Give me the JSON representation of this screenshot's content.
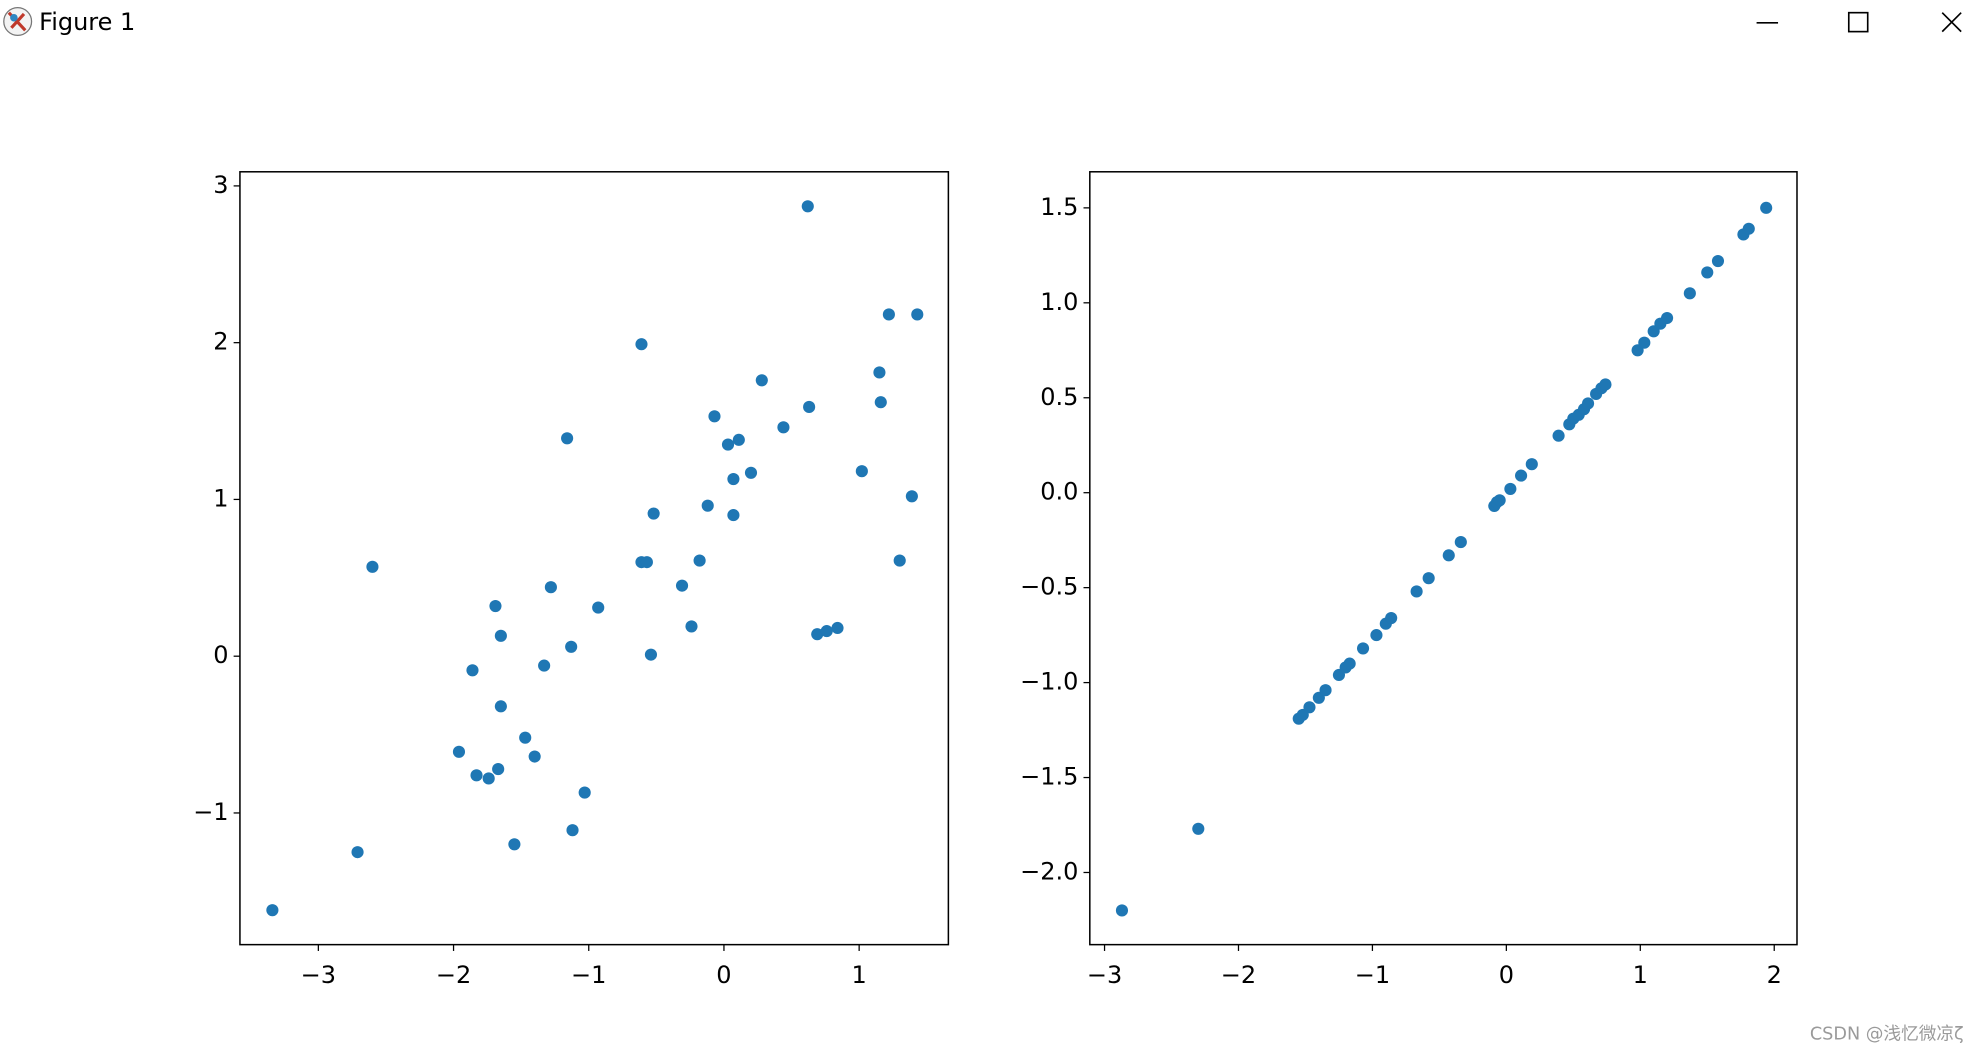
{
  "window": {
    "title": "Figure 1"
  },
  "watermark": "CSDN @浅忆微凉ζ",
  "chart_data": [
    {
      "type": "scatter",
      "color": "#1f77b4",
      "xlim": [
        -3.58,
        1.66
      ],
      "ylim": [
        -1.84,
        3.09
      ],
      "xticks": [
        {
          "value": -3,
          "label": "−3"
        },
        {
          "value": -2,
          "label": "−2"
        },
        {
          "value": -1,
          "label": "−1"
        },
        0,
        1
      ],
      "yticks": [
        {
          "value": -1,
          "label": "−1"
        },
        0,
        1,
        2,
        3
      ],
      "x": [
        -3.34,
        -2.71,
        -2.6,
        -1.96,
        -1.86,
        -1.83,
        -1.74,
        -1.69,
        -1.67,
        -1.65,
        -1.65,
        -1.55,
        -1.47,
        -1.4,
        -1.33,
        -1.28,
        -1.16,
        -1.13,
        -1.12,
        -1.03,
        -0.93,
        -0.61,
        -0.61,
        -0.57,
        -0.54,
        -0.52,
        -0.31,
        -0.24,
        -0.18,
        -0.12,
        -0.07,
        0.03,
        0.07,
        0.07,
        0.11,
        0.2,
        0.28,
        0.44,
        0.62,
        0.63,
        0.69,
        0.76,
        0.84,
        1.02,
        1.15,
        1.16,
        1.22,
        1.3,
        1.39,
        1.43
      ],
      "values": [
        -1.62,
        -1.25,
        0.57,
        -0.61,
        -0.09,
        -0.76,
        -0.78,
        0.32,
        -0.72,
        0.13,
        -0.32,
        -1.2,
        -0.52,
        -0.64,
        -0.06,
        0.44,
        1.39,
        0.06,
        -1.11,
        -0.87,
        0.31,
        1.99,
        0.6,
        0.6,
        0.01,
        0.91,
        0.45,
        0.19,
        0.61,
        0.96,
        1.53,
        1.35,
        1.13,
        0.9,
        1.38,
        1.17,
        1.76,
        1.46,
        2.87,
        1.59,
        0.14,
        0.16,
        0.18,
        1.18,
        1.81,
        1.62,
        2.18,
        0.61,
        1.02,
        2.18
      ]
    },
    {
      "type": "scatter",
      "color": "#1f77b4",
      "xlim": [
        -3.11,
        2.17
      ],
      "ylim": [
        -2.38,
        1.69
      ],
      "xticks": [
        {
          "value": -3,
          "label": "−3"
        },
        {
          "value": -2,
          "label": "−2"
        },
        {
          "value": -1,
          "label": "−1"
        },
        0,
        1,
        2
      ],
      "yticks": [
        {
          "value": -2.0,
          "label": "−2.0"
        },
        {
          "value": -1.5,
          "label": "−1.5"
        },
        {
          "value": -1.0,
          "label": "−1.0"
        },
        {
          "value": -0.5,
          "label": "−0.5"
        },
        {
          "value": 0.0,
          "label": "0.0"
        },
        0.5,
        {
          "value": 1.0,
          "label": "1.0"
        },
        1.5
      ],
      "x": [
        -2.87,
        -2.3,
        -1.55,
        -1.52,
        -1.47,
        -1.4,
        -1.35,
        -1.25,
        -1.2,
        -1.17,
        -1.07,
        -0.97,
        -0.9,
        -0.86,
        -0.67,
        -0.58,
        -0.43,
        -0.34,
        -0.09,
        -0.07,
        -0.05,
        0.03,
        0.11,
        0.19,
        0.39,
        0.47,
        0.5,
        0.54,
        0.58,
        0.61,
        0.67,
        0.71,
        0.74,
        0.98,
        1.03,
        1.1,
        1.15,
        1.2,
        1.37,
        1.5,
        1.58,
        1.77,
        1.81,
        1.94
      ],
      "values": [
        -2.2,
        -1.77,
        -1.19,
        -1.17,
        -1.13,
        -1.08,
        -1.04,
        -0.96,
        -0.92,
        -0.9,
        -0.82,
        -0.75,
        -0.69,
        -0.66,
        -0.52,
        -0.45,
        -0.33,
        -0.26,
        -0.07,
        -0.05,
        -0.04,
        0.02,
        0.09,
        0.15,
        0.3,
        0.36,
        0.39,
        0.41,
        0.44,
        0.47,
        0.52,
        0.55,
        0.57,
        0.75,
        0.79,
        0.85,
        0.89,
        0.92,
        1.05,
        1.16,
        1.22,
        1.36,
        1.39,
        1.5
      ]
    }
  ]
}
